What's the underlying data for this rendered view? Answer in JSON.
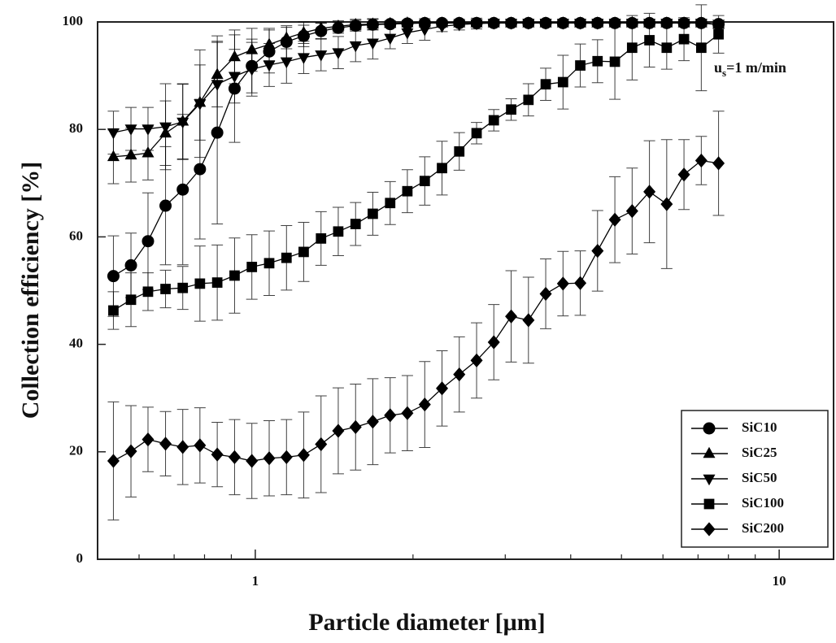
{
  "chart_data": {
    "type": "line",
    "x_label": "Particle diameter [μm]",
    "y_label": "Collection efficiency [%]",
    "annotation": {
      "text": "u",
      "sub": "s",
      "rest": "=1 m/min"
    },
    "xscale": "log",
    "xlim": [
      0.5,
      12.7
    ],
    "xticks": [
      1,
      10
    ],
    "xminorticks": [
      0.6,
      0.7,
      0.8,
      0.9,
      2,
      3,
      4,
      5,
      6,
      7,
      8,
      9
    ],
    "ylim": [
      0,
      100
    ],
    "yticks": [
      0,
      20,
      40,
      60,
      80,
      100
    ],
    "legend": "lower right",
    "x": [
      0.536,
      0.579,
      0.624,
      0.674,
      0.727,
      0.784,
      0.846,
      0.913,
      0.985,
      1.063,
      1.147,
      1.237,
      1.335,
      1.44,
      1.554,
      1.676,
      1.809,
      1.951,
      2.106,
      2.272,
      2.451,
      2.645,
      2.853,
      3.079,
      3.322,
      3.584,
      3.867,
      4.172,
      4.501,
      4.857,
      5.24,
      5.654,
      6.1,
      6.581,
      7.101,
      7.661
    ],
    "series": [
      {
        "name": "SiC10",
        "color": "#000000",
        "marker": "circle",
        "values": [
          52.7,
          54.7,
          59.2,
          65.8,
          68.8,
          72.6,
          79.4,
          87.6,
          91.8,
          94.5,
          96.3,
          97.4,
          98.3,
          98.9,
          99.3,
          99.5,
          99.6,
          99.7,
          99.8,
          99.8,
          99.8,
          99.8,
          99.8,
          99.8,
          99.8,
          99.8,
          99.8,
          99.8,
          99.8,
          99.8,
          99.8,
          99.8,
          99.8,
          99.8,
          99.8,
          99.6
        ],
        "errors": [
          7.5,
          6,
          9,
          11,
          14,
          13,
          17,
          10,
          5,
          4,
          3,
          2,
          1.5,
          1,
          1,
          1,
          0.5,
          0.5,
          0.5,
          0.5,
          0.5,
          0.5,
          0.5,
          0.5,
          0.5,
          0.5,
          0.5,
          0.5,
          0.5,
          0.5,
          0.5,
          0.5,
          0.5,
          0.5,
          0.5,
          0.5
        ]
      },
      {
        "name": "SiC25",
        "color": "#000000",
        "marker": "triangle-up",
        "values": [
          74.9,
          75.2,
          75.6,
          79.3,
          81.5,
          85.0,
          90.2,
          93.5,
          94.8,
          95.8,
          97.0,
          98.0,
          98.8,
          99.2,
          99.5,
          99.6,
          99.7,
          99.8,
          99.8,
          99.8,
          99.8,
          99.8,
          99.8,
          99.8,
          99.8,
          99.8,
          99.8,
          99.8,
          99.8,
          99.8,
          99.8,
          99.8,
          99.8,
          99.8,
          99.8,
          99.5
        ],
        "errors": [
          5,
          5,
          5,
          6,
          7,
          7,
          6,
          5,
          4,
          3,
          2,
          2,
          1,
          1,
          1,
          1,
          0.5,
          0.5,
          0.5,
          0.5,
          0.5,
          0.5,
          0.5,
          0.5,
          0.5,
          0.5,
          0.5,
          0.5,
          0.5,
          0.5,
          0.5,
          0.5,
          0.5,
          0.5,
          0.5,
          0.5
        ]
      },
      {
        "name": "SiC50",
        "color": "#000000",
        "marker": "triangle-down",
        "values": [
          79.4,
          80.1,
          80.1,
          80.5,
          81.4,
          84.8,
          88.4,
          89.9,
          91.2,
          92.0,
          92.6,
          93.4,
          93.9,
          94.3,
          95.6,
          96.1,
          97.0,
          98.0,
          98.6,
          99.2,
          99.5,
          99.7,
          99.8,
          99.8,
          99.8,
          99.8,
          99.8,
          99.8,
          99.8,
          99.8,
          99.8,
          99.8,
          99.8,
          99.8,
          99.8,
          99.6
        ],
        "errors": [
          4,
          4,
          4,
          8,
          7,
          10,
          9,
          5,
          5,
          4,
          4,
          3,
          3,
          3,
          3,
          3,
          2,
          2,
          2,
          1,
          1,
          1,
          0.5,
          0.5,
          0.5,
          0.5,
          0.5,
          0.5,
          0.5,
          0.5,
          0.5,
          0.5,
          0.5,
          0.5,
          0.5,
          0.5
        ]
      },
      {
        "name": "SiC100",
        "color": "#000000",
        "marker": "square",
        "values": [
          46.3,
          48.3,
          49.8,
          50.3,
          50.5,
          51.3,
          51.5,
          52.8,
          54.4,
          55.1,
          56.1,
          57.2,
          59.7,
          61.0,
          62.4,
          64.3,
          66.3,
          68.5,
          70.4,
          72.8,
          75.9,
          79.3,
          81.7,
          83.7,
          85.5,
          88.4,
          88.8,
          91.9,
          92.7,
          92.6,
          95.2,
          96.6,
          95.2,
          96.8,
          95.2,
          97.7
        ],
        "errors": [
          3.5,
          5,
          3.5,
          3.5,
          4,
          7,
          7,
          7,
          6,
          6,
          6,
          5.5,
          5,
          4.5,
          4,
          4,
          4,
          4,
          4.5,
          5,
          3.5,
          2,
          2,
          2,
          3,
          3,
          5,
          4,
          4,
          7,
          6,
          5,
          4,
          4,
          8,
          3.5
        ]
      },
      {
        "name": "SiC200",
        "color": "#000000",
        "marker": "diamond",
        "values": [
          18.3,
          20.1,
          22.3,
          21.5,
          20.9,
          21.2,
          19.5,
          19.0,
          18.3,
          18.8,
          19.0,
          19.4,
          21.4,
          23.9,
          24.6,
          25.6,
          26.8,
          27.2,
          28.8,
          31.8,
          34.4,
          37.0,
          40.4,
          45.2,
          44.5,
          49.4,
          51.3,
          51.4,
          57.4,
          63.2,
          64.8,
          68.4,
          66.1,
          71.6,
          74.2,
          73.7
        ],
        "errors": [
          11,
          8.5,
          6,
          6,
          7,
          7,
          6,
          7,
          7,
          7,
          7,
          8,
          9,
          8,
          8,
          8,
          7,
          7,
          8,
          7,
          7,
          7,
          7,
          8.5,
          8,
          6.5,
          6,
          6,
          7.5,
          8,
          8,
          9.5,
          12,
          6.5,
          4.5,
          9.7
        ]
      }
    ]
  }
}
